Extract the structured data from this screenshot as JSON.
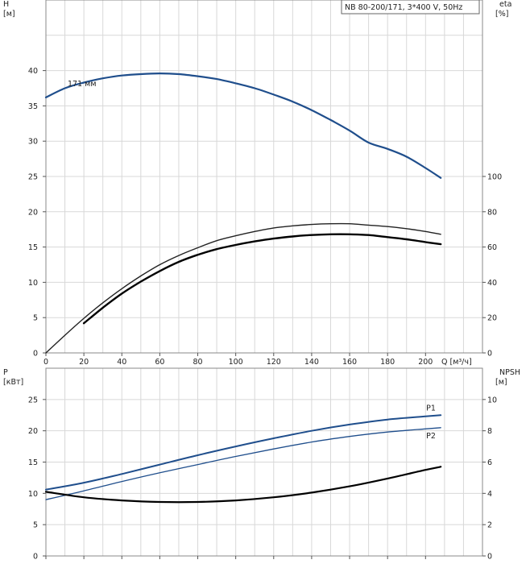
{
  "chart_data": [
    {
      "type": "line",
      "title": "NB 80-200/171, 3*400 V, 50Hz",
      "annotation": "171 мм",
      "xlabel": "Q [м³/ч]",
      "xlim": [
        0,
        230
      ],
      "x_ticks": [
        0,
        20,
        40,
        60,
        80,
        100,
        120,
        140,
        160,
        180,
        200
      ],
      "y_left": {
        "label_top": "H",
        "label_bottom": "[м]",
        "lim": [
          0,
          50
        ],
        "ticks": [
          0,
          5,
          10,
          15,
          20,
          25,
          30,
          35,
          40
        ]
      },
      "y_right": {
        "label_top": "eta",
        "label_bottom": "[%]",
        "lim": [
          0,
          200
        ],
        "ticks": [
          0,
          20,
          40,
          60,
          80,
          100
        ]
      },
      "grid": true,
      "series": [
        {
          "axis": "left",
          "color": "#1f4e8c",
          "x": [
            0,
            10,
            20,
            30,
            40,
            50,
            60,
            70,
            80,
            90,
            100,
            110,
            120,
            130,
            140,
            150,
            160,
            170,
            180,
            190,
            200,
            208
          ],
          "values": [
            36.2,
            37.5,
            38.3,
            38.9,
            39.3,
            39.5,
            39.6,
            39.5,
            39.2,
            38.8,
            38.2,
            37.5,
            36.6,
            35.6,
            34.4,
            33.0,
            31.5,
            29.8,
            28.9,
            27.8,
            26.2,
            24.8
          ]
        },
        {
          "axis": "left",
          "color": "#222222",
          "x": [
            0,
            10,
            20,
            30,
            40,
            50,
            60,
            70,
            80,
            90,
            100,
            110,
            120,
            130,
            140,
            150,
            160,
            170,
            180,
            190,
            200,
            208
          ],
          "values": [
            0,
            2.5,
            4.9,
            7.1,
            9.1,
            10.9,
            12.5,
            13.8,
            14.9,
            15.9,
            16.6,
            17.2,
            17.7,
            18.0,
            18.2,
            18.3,
            18.3,
            18.1,
            17.9,
            17.6,
            17.2,
            16.8
          ]
        },
        {
          "axis": "left",
          "color": "#000000",
          "x": [
            20,
            30,
            40,
            50,
            60,
            70,
            80,
            90,
            100,
            110,
            120,
            130,
            140,
            150,
            160,
            170,
            180,
            190,
            200,
            208
          ],
          "values": [
            4.2,
            6.4,
            8.4,
            10.1,
            11.6,
            12.9,
            13.9,
            14.7,
            15.3,
            15.8,
            16.2,
            16.5,
            16.7,
            16.8,
            16.8,
            16.7,
            16.4,
            16.1,
            15.7,
            15.4
          ]
        }
      ]
    },
    {
      "type": "line",
      "xlim": [
        0,
        230
      ],
      "y_left": {
        "label_top": "P",
        "label_bottom": "[кВт]",
        "lim": [
          0,
          30
        ],
        "ticks": [
          0,
          5,
          10,
          15,
          20,
          25
        ]
      },
      "y_right": {
        "label_top": "NPSH",
        "label_bottom": "[м]",
        "lim": [
          0,
          12
        ],
        "ticks": [
          0,
          2,
          4,
          6,
          8,
          10
        ]
      },
      "grid": true,
      "series": [
        {
          "name": "P1",
          "axis": "left",
          "color": "#1f4e8c",
          "x": [
            0,
            20,
            40,
            60,
            80,
            100,
            120,
            140,
            160,
            180,
            200,
            208
          ],
          "values": [
            10.6,
            11.7,
            13.1,
            14.6,
            16.1,
            17.5,
            18.8,
            20.0,
            21.0,
            21.8,
            22.3,
            22.5
          ]
        },
        {
          "name": "P2",
          "axis": "left",
          "color": "#1f4e8c",
          "x": [
            0,
            20,
            40,
            60,
            80,
            100,
            120,
            140,
            160,
            180,
            200,
            208
          ],
          "values": [
            9.0,
            10.4,
            11.9,
            13.3,
            14.6,
            15.9,
            17.1,
            18.2,
            19.1,
            19.8,
            20.3,
            20.5
          ]
        },
        {
          "axis": "right",
          "color": "#000000",
          "x": [
            0,
            20,
            40,
            60,
            80,
            100,
            120,
            140,
            160,
            180,
            200,
            208
          ],
          "values": [
            4.1,
            3.75,
            3.55,
            3.45,
            3.45,
            3.55,
            3.75,
            4.05,
            4.45,
            4.95,
            5.5,
            5.7
          ]
        }
      ]
    }
  ]
}
